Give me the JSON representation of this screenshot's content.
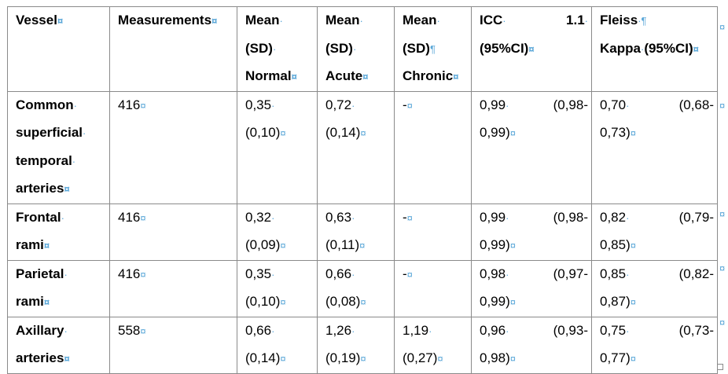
{
  "marks": {
    "cell_end": "¤",
    "space": "·",
    "pilcrow": "¶"
  },
  "header": {
    "vessel": "Vessel",
    "measurements": "Measurements",
    "mean_normal": [
      "Mean",
      "(SD)",
      "Normal"
    ],
    "mean_acute": [
      "Mean",
      "(SD)",
      "Acute"
    ],
    "mean_chronic": [
      "Mean",
      "(SD)",
      "Chronic"
    ],
    "icc": [
      "ICC",
      "1.1",
      "(95%CI)"
    ],
    "fleiss": [
      "Fleiss",
      "Kappa",
      "(95%CI)"
    ]
  },
  "rows": [
    {
      "vessel": [
        "Common",
        "superficial",
        "temporal",
        "arteries"
      ],
      "measurements": "416",
      "normal": [
        "0,35",
        "(0,10)"
      ],
      "acute": [
        "0,72",
        "(0,14)"
      ],
      "chronic": [
        "-"
      ],
      "icc": [
        "0,99",
        "(0,98-",
        "0,99)"
      ],
      "fleiss": [
        "0,70",
        "(0,68-",
        "0,73)"
      ]
    },
    {
      "vessel": [
        "Frontal",
        "rami"
      ],
      "measurements": "416",
      "normal": [
        "0,32",
        "(0,09)"
      ],
      "acute": [
        "0,63",
        "(0,11)"
      ],
      "chronic": [
        "-"
      ],
      "icc": [
        "0,99",
        "(0,98-",
        "0,99)"
      ],
      "fleiss": [
        "0,82",
        "(0,79-",
        "0,85)"
      ]
    },
    {
      "vessel": [
        "Parietal",
        "rami"
      ],
      "measurements": "416",
      "normal": [
        "0,35",
        "(0,10)"
      ],
      "acute": [
        "0,66",
        "(0,08)"
      ],
      "chronic": [
        "-"
      ],
      "icc": [
        "0,98",
        "(0,97-",
        "0,99)"
      ],
      "fleiss": [
        "0,85",
        "(0,82-",
        "0,87)"
      ]
    },
    {
      "vessel": [
        "Axillary",
        "arteries"
      ],
      "measurements": "558",
      "normal": [
        "0,66",
        "(0,14)"
      ],
      "acute": [
        "1,26",
        "(0,19)"
      ],
      "chronic": [
        "1,19",
        "(0,27)"
      ],
      "icc": [
        "0,96",
        "(0,93-",
        "0,98)"
      ],
      "fleiss": [
        "0,75",
        "(0,73-",
        "0,77)"
      ]
    }
  ]
}
